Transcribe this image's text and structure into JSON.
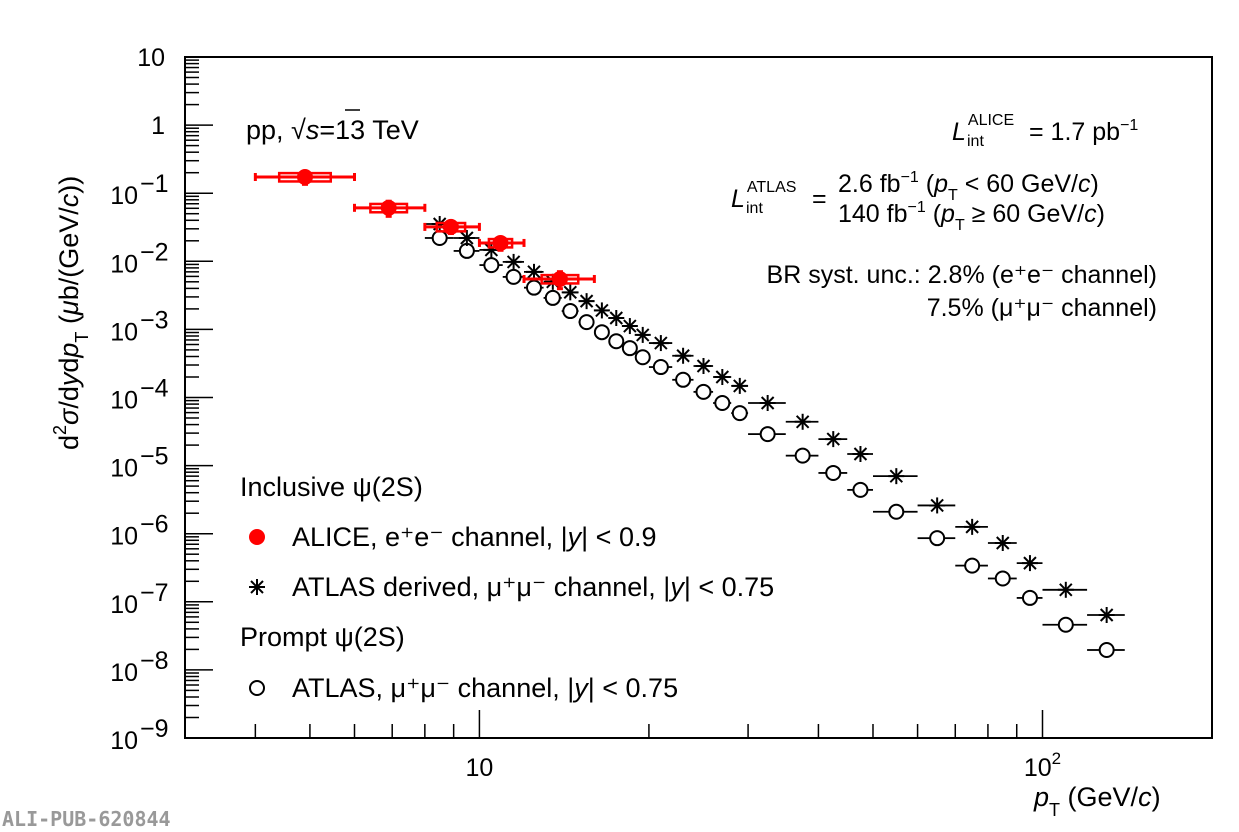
{
  "chart_data": {
    "type": "scatter",
    "title": "",
    "xlabel": "p_T (GeV/c)",
    "ylabel": "d2sigma/dydp_T (mub/(GeV/c))",
    "xscale": "log",
    "yscale": "log",
    "xlim": [
      3,
      200
    ],
    "ylim": [
      1e-09,
      10
    ],
    "xticks": [
      10,
      100
    ],
    "yticks": [
      1e-09,
      1e-08,
      1e-07,
      1e-06,
      1e-05,
      0.0001,
      0.001,
      0.01,
      0.1,
      1,
      10
    ],
    "series": [
      {
        "name": "ALICE, e+e- channel, |y| < 0.9",
        "marker": "filled-circle",
        "color": "#ff0000",
        "x": [
          4.9,
          6.9,
          8.9,
          10.9,
          13.9
        ],
        "x_lo": [
          4,
          6,
          8,
          10,
          12
        ],
        "x_hi": [
          6,
          8,
          10,
          12,
          16
        ],
        "y": [
          0.173,
          0.061,
          0.032,
          0.0186,
          0.0055
        ],
        "stat_rel": [
          0.22,
          0.25,
          0.2,
          0.22,
          0.28
        ],
        "syst_rel": [
          0.14,
          0.14,
          0.14,
          0.14,
          0.14
        ]
      },
      {
        "name": "ATLAS derived, mu+mu- channel, |y| < 0.75",
        "marker": "asterisk",
        "color": "#000000",
        "x": [
          8.5,
          9.5,
          10.5,
          11.5,
          12.5,
          13.5,
          14.5,
          15.5,
          16.5,
          17.5,
          18.5,
          19.5,
          21,
          23,
          25,
          27,
          29,
          32.5,
          37.5,
          42.5,
          47.5,
          55,
          65,
          75,
          85,
          95,
          110,
          130
        ],
        "x_lo": [
          8,
          9,
          10,
          11,
          12,
          13,
          14,
          15,
          16,
          17,
          18,
          19,
          20,
          22,
          24,
          26,
          28,
          30,
          35,
          40,
          45,
          50,
          60,
          70,
          80,
          90,
          100,
          120
        ],
        "x_hi": [
          9,
          10,
          11,
          12,
          13,
          14,
          15,
          16,
          17,
          18,
          19,
          20,
          22,
          24,
          26,
          28,
          30,
          35,
          40,
          45,
          50,
          60,
          70,
          80,
          90,
          100,
          120,
          140
        ],
        "y": [
          0.0353,
          0.022,
          0.0147,
          0.0098,
          0.007,
          0.005,
          0.0035,
          0.0026,
          0.0019,
          0.00147,
          0.00112,
          0.00083,
          0.00063,
          0.00041,
          0.00029,
          0.0002,
          0.000148,
          8.3e-05,
          4.4e-05,
          2.45e-05,
          1.48e-05,
          7e-06,
          2.6e-06,
          1.26e-06,
          7.3e-07,
          3.7e-07,
          1.5e-07,
          6.4e-08
        ]
      },
      {
        "name": "ATLAS, mu+mu- channel, |y| < 0.75 (prompt)",
        "marker": "open-circle",
        "color": "#000000",
        "x": [
          8.5,
          9.5,
          10.5,
          11.5,
          12.5,
          13.5,
          14.5,
          15.5,
          16.5,
          17.5,
          18.5,
          19.5,
          21,
          23,
          25,
          27,
          29,
          32.5,
          37.5,
          42.5,
          47.5,
          55,
          65,
          75,
          85,
          95,
          110,
          130
        ],
        "x_lo": [
          8,
          9,
          10,
          11,
          12,
          13,
          14,
          15,
          16,
          17,
          18,
          19,
          20,
          22,
          24,
          26,
          28,
          30,
          35,
          40,
          45,
          50,
          60,
          70,
          80,
          90,
          100,
          120
        ],
        "x_hi": [
          9,
          10,
          11,
          12,
          13,
          14,
          15,
          16,
          17,
          18,
          19,
          20,
          22,
          24,
          26,
          28,
          30,
          35,
          40,
          45,
          50,
          60,
          70,
          80,
          90,
          100,
          120,
          140
        ],
        "y": [
          0.022,
          0.0142,
          0.0088,
          0.0059,
          0.0041,
          0.0029,
          0.00186,
          0.00128,
          0.00091,
          0.00067,
          0.00053,
          0.00039,
          0.00028,
          0.000182,
          0.000121,
          8.3e-05,
          5.9e-05,
          2.9e-05,
          1.4e-05,
          7.8e-06,
          4.4e-06,
          2.1e-06,
          8.6e-07,
          3.4e-07,
          2.2e-07,
          1.14e-07,
          4.6e-08,
          1.96e-08
        ]
      }
    ],
    "legend_placement": "bottom-left",
    "grid": false
  },
  "labels": {
    "xaxis": {
      "p": "p",
      "sub": "T",
      "unit": " (GeV/",
      "c": "c",
      "close": ")"
    },
    "yaxis": {
      "d": "d",
      "two": "2",
      "sigma": "σ",
      "slash": "/d",
      "y": "y",
      "d2": "d",
      "p": "p",
      "sub": "T",
      "unit": " (",
      "mu": "μ",
      "rest": "b/(GeV/",
      "c": "c",
      "close": "))"
    },
    "energy": {
      "pp": "pp, ",
      "sqrt": "√",
      "s": "s",
      "rest": "=13 TeV"
    },
    "lumi_alice": {
      "L": "L",
      "sup": "ALICE",
      "sub": "int",
      "value": "= 1.7 pb",
      "exp": "−1"
    },
    "lumi_atlas": {
      "L": "L",
      "sup": "ATLAS",
      "sub": "int",
      "eq": "=",
      "line1": {
        "value": "2.6 fb",
        "exp": "−1",
        "open": " (",
        "p": "p",
        "sub": "T",
        "cond": " < 60 GeV/",
        "c": "c",
        "close": ")"
      },
      "line2": {
        "value": "140 fb",
        "exp": "−1",
        "open": " (",
        "p": "p",
        "sub": "T",
        "cond": " ≥ 60 GeV/",
        "c": "c",
        "close": ")"
      }
    },
    "br": {
      "line1": "BR syst. unc.: 2.8% (e⁺e⁻ channel)",
      "line2": "7.5% (μ⁺μ⁻ channel)"
    },
    "watermark": "ALI-PUB-620844"
  },
  "legend": {
    "inclusive_header": "Inclusive ψ(2S)",
    "alice_pre": "ALICE, e⁺e⁻ channel, |",
    "alice_y": "y",
    "alice_post": "| < 0.9",
    "atlas_derived_pre": "ATLAS derived, μ⁺μ⁻ channel, |",
    "atlas_derived_y": "y",
    "atlas_derived_post": "| < 0.75",
    "prompt_header": "Prompt ψ(2S)",
    "atlas_pre": "ATLAS, μ⁺μ⁻ channel, |",
    "atlas_y": "y",
    "atlas_post": "| < 0.75"
  }
}
